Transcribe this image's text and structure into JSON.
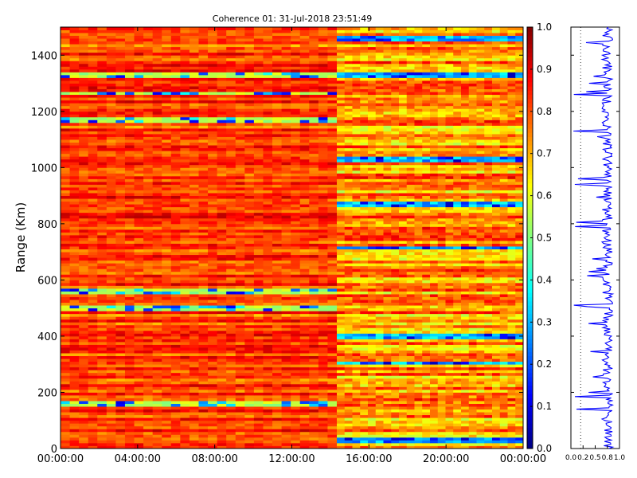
{
  "chart_data": [
    {
      "type": "heatmap",
      "title": "Coherence 01: 31-Jul-2018 23:51:49",
      "ylabel": "Range (Km)",
      "xlabel": "",
      "xlim": [
        "00:00:00",
        "24:00:00"
      ],
      "ylim": [
        0,
        1500
      ],
      "x_ticks": [
        "00:00:00",
        "04:00:00",
        "08:00:00",
        "12:00:00",
        "16:00:00",
        "20:00:00",
        "00:00:00"
      ],
      "y_ticks": [
        0,
        200,
        400,
        600,
        800,
        1000,
        1200,
        1400
      ],
      "data_ends_at": "14:20:00",
      "colormap": "jet",
      "colorbar": {
        "range": [
          0.0,
          1.0
        ],
        "ticks": [
          "0.0",
          "0.1",
          "0.2",
          "0.3",
          "0.4",
          "0.5",
          "0.6",
          "0.7",
          "0.8",
          "0.9",
          "1.0"
        ]
      },
      "low_coherence_bands_km": [
        1170,
        1265,
        1330,
        560,
        500,
        160
      ],
      "late_low_bands_km": [
        30,
        305,
        400,
        715,
        870,
        1030,
        1330,
        1460
      ]
    },
    {
      "type": "line",
      "title": "",
      "xlim": [
        0.0,
        1.0
      ],
      "ylim": [
        0,
        1500
      ],
      "x_ticks": [
        "0.0",
        "0.2",
        "0.5",
        "0.8",
        "1.0"
      ],
      "series_color": "#0000ff",
      "mean_value": 0.75
    }
  ],
  "colors": {
    "series": "#0000ff",
    "axis": "#000000",
    "background": "#ffffff"
  }
}
